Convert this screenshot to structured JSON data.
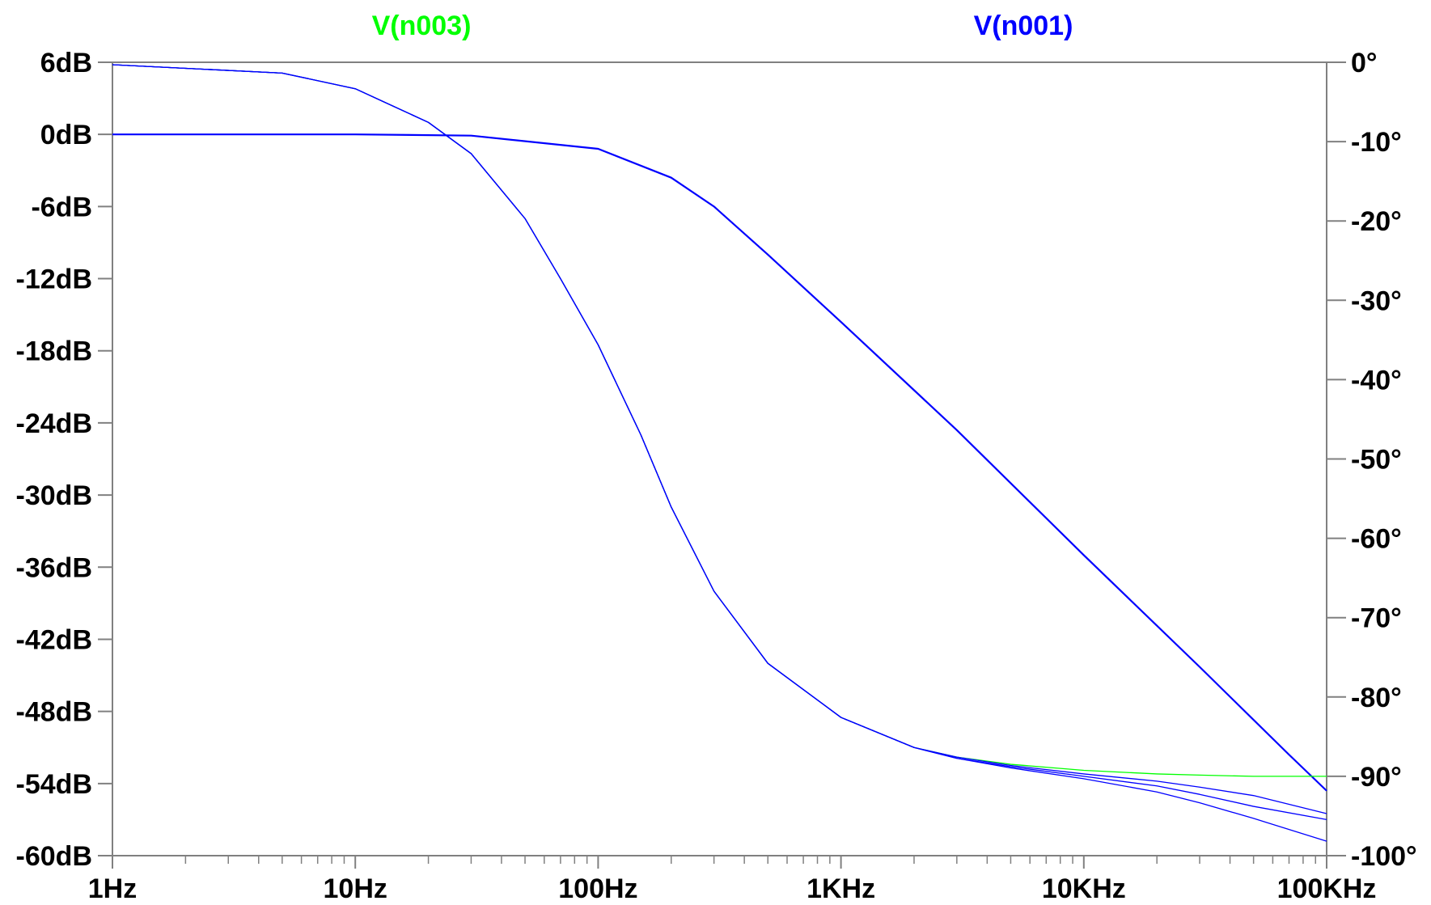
{
  "chart_data": {
    "type": "line",
    "title": "",
    "x_scale": "log",
    "xlim": [
      1,
      100000
    ],
    "x_ticks": [
      1,
      10,
      100,
      1000,
      10000,
      100000
    ],
    "x_tick_labels": [
      "1Hz",
      "10Hz",
      "100Hz",
      "1KHz",
      "10KHz",
      "100KHz"
    ],
    "y_left": {
      "unit": "dB",
      "lim": [
        -60,
        6
      ],
      "ticks": [
        6,
        0,
        -6,
        -12,
        -18,
        -24,
        -30,
        -36,
        -42,
        -48,
        -54,
        -60
      ],
      "tick_labels": [
        "6dB",
        "0dB",
        "-6dB",
        "-12dB",
        "-18dB",
        "-24dB",
        "-30dB",
        "-36dB",
        "-42dB",
        "-48dB",
        "-54dB",
        "-60dB"
      ]
    },
    "y_right": {
      "unit": "degrees",
      "lim": [
        -100,
        0
      ],
      "ticks": [
        0,
        -10,
        -20,
        -30,
        -40,
        -50,
        -60,
        -70,
        -80,
        -90,
        -100
      ],
      "tick_labels": [
        "0°",
        "-10°",
        "-20°",
        "-30°",
        "-40°",
        "-50°",
        "-60°",
        "-70°",
        "-80°",
        "-90°",
        "-100°"
      ]
    },
    "grid": false,
    "legend": [
      {
        "name": "V(n003)",
        "color": "#00ff00",
        "position": "top-left"
      },
      {
        "name": "V(n001)",
        "color": "#0000ff",
        "position": "top-right"
      }
    ],
    "series": [
      {
        "name": "V(n001)",
        "color": "#0000ff",
        "axis": "left",
        "x": [
          1,
          10,
          30,
          100,
          200,
          300,
          500,
          1000,
          3000,
          10000,
          30000,
          70000,
          100000
        ],
        "values": [
          0,
          0,
          -0.1,
          -1.2,
          -3.6,
          -6.0,
          -10.0,
          -15.6,
          -24.6,
          -35.0,
          -44.3,
          -51.6,
          -54.6
        ]
      },
      {
        "name": "V(n003)",
        "color": "#00ff00",
        "axis": "left",
        "x": [
          1,
          5,
          10,
          20,
          30,
          50,
          70,
          100,
          150,
          200,
          300,
          500,
          1000,
          2000,
          3000,
          5000,
          10000,
          20000,
          30000,
          50000,
          100000
        ],
        "values": [
          5.8,
          5.1,
          3.8,
          1.0,
          -1.6,
          -7.0,
          -12.0,
          -17.5,
          -25.0,
          -31.0,
          -38.0,
          -44.0,
          -48.5,
          -51.0,
          -51.8,
          -52.4,
          -52.9,
          -53.2,
          -53.3,
          -53.4,
          -53.4
        ]
      },
      {
        "name": "V(n003)",
        "color": "#0000ff",
        "axis": "left",
        "x": [
          1,
          5,
          10,
          20,
          30,
          50,
          70,
          100,
          150,
          200,
          300,
          500,
          1000,
          2000,
          3000,
          5000,
          10000,
          20000,
          30000,
          50000,
          100000
        ],
        "values": [
          5.8,
          5.1,
          3.8,
          1.0,
          -1.6,
          -7.0,
          -12.0,
          -17.5,
          -25.0,
          -31.0,
          -38.0,
          -44.0,
          -48.5,
          -51.0,
          -51.8,
          -52.5,
          -53.2,
          -53.8,
          -54.3,
          -55.0,
          -56.5
        ]
      },
      {
        "name": "V(n003)",
        "color": "#0000ff",
        "axis": "left",
        "x": [
          1,
          5,
          10,
          20,
          30,
          50,
          70,
          100,
          150,
          200,
          300,
          500,
          1000,
          2000,
          3000,
          5000,
          10000,
          20000,
          30000,
          50000,
          100000
        ],
        "values": [
          5.8,
          5.1,
          3.8,
          1.0,
          -1.6,
          -7.0,
          -12.0,
          -17.5,
          -25.0,
          -31.0,
          -38.0,
          -44.0,
          -48.5,
          -51.0,
          -51.9,
          -52.6,
          -53.4,
          -54.2,
          -54.9,
          -55.9,
          -57.0
        ]
      },
      {
        "name": "V(n003)",
        "color": "#0000ff",
        "axis": "left",
        "x": [
          1,
          5,
          10,
          20,
          30,
          50,
          70,
          100,
          150,
          200,
          300,
          500,
          1000,
          2000,
          3000,
          5000,
          10000,
          20000,
          30000,
          50000,
          100000
        ],
        "values": [
          5.8,
          5.1,
          3.8,
          1.0,
          -1.6,
          -7.0,
          -12.0,
          -17.5,
          -25.0,
          -31.0,
          -38.0,
          -44.0,
          -48.5,
          -51.0,
          -51.9,
          -52.7,
          -53.6,
          -54.7,
          -55.6,
          -56.9,
          -58.8
        ]
      }
    ]
  }
}
